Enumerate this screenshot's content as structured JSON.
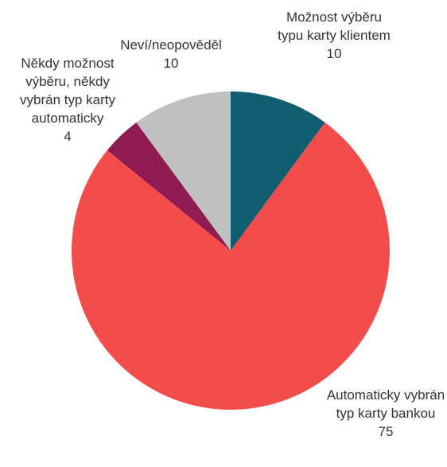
{
  "chart_data": {
    "type": "pie",
    "categories": [
      "Možnost výběru typu karty klientem",
      "Automaticky vybrán typ karty bankou",
      "Někdy možnost výběru, někdy vybrán typ karty automaticky",
      "Neví/neopověděl"
    ],
    "values": [
      10,
      75,
      4,
      10
    ],
    "colors": [
      "#0e5e6f",
      "#f44b4b",
      "#8e1b52",
      "#c0c0c0"
    ]
  }
}
